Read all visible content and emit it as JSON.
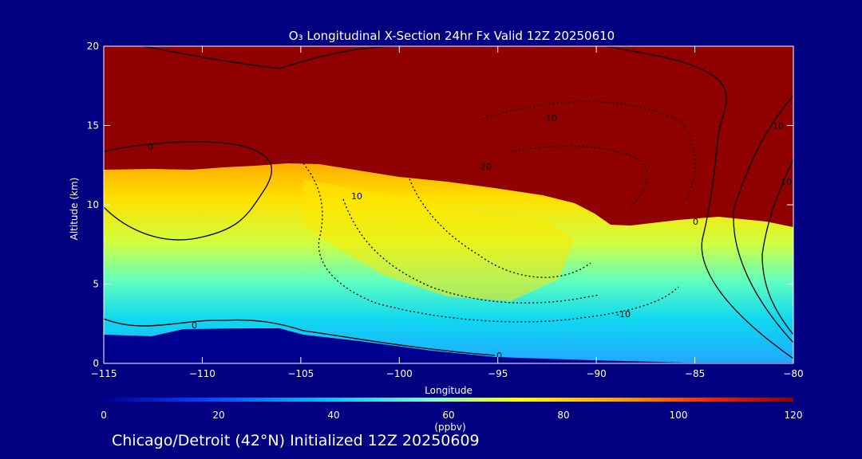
{
  "chart_data": {
    "type": "heatmap",
    "title": "O₃ Longitudinal X-Section 24hr  Fx Valid 12Z 20250610",
    "xlabel": "Longitude",
    "ylabel": "Altitude (km)",
    "xlim": [
      -115,
      -80
    ],
    "ylim": [
      0,
      20
    ],
    "x_ticks": [
      -115,
      -110,
      -105,
      -100,
      -95,
      -90,
      -85,
      -80
    ],
    "x_tick_labels": [
      "−115",
      "−110",
      "−105",
      "−100",
      "−95",
      "−90",
      "−85",
      "−80"
    ],
    "y_ticks": [
      0,
      5,
      10,
      15,
      20
    ],
    "y_tick_labels": [
      "0",
      "5",
      "10",
      "15",
      "20"
    ],
    "colorbar": {
      "label": "(ppbv)",
      "min": 0,
      "max": 120,
      "ticks": [
        0,
        20,
        40,
        60,
        80,
        100,
        120
      ],
      "colors": [
        "#000090",
        "#0040ff",
        "#00c8ff",
        "#80ffd0",
        "#ffff00",
        "#ffa000",
        "#ff2000",
        "#900000"
      ]
    },
    "field_description": "Ozone mixing ratio (ppbv); low (<20) near surface, 20-60 in lower troposphere, yellow 60-80 mid troposphere, >120 above ~11-13 km (tropopause dips to ~8 km near -91 to -87)",
    "tropopause_km": [
      [
        -115,
        12.5
      ],
      [
        -110,
        12.3
      ],
      [
        -105,
        12.6
      ],
      [
        -100,
        11.8
      ],
      [
        -95,
        11.2
      ],
      [
        -92,
        10.5
      ],
      [
        -90,
        9.0
      ],
      [
        -87,
        8.8
      ],
      [
        -85,
        9.0
      ],
      [
        -80,
        8.8
      ]
    ],
    "surface_terrain_km": [
      [
        -115,
        1.7
      ],
      [
        -112,
        1.6
      ],
      [
        -110,
        2.1
      ],
      [
        -106,
        2.1
      ],
      [
        -104,
        1.6
      ],
      [
        -100,
        1.0
      ],
      [
        -95,
        0.5
      ],
      [
        -90,
        0.3
      ],
      [
        -85,
        0.2
      ],
      [
        -80,
        0.2
      ]
    ],
    "contour_labels": [
      "0",
      "0",
      "0",
      "10",
      "-10",
      "-20",
      "-10",
      "10",
      "0",
      "10"
    ]
  },
  "subtitle": "Chicago/Detroit (42°N) Initialized 12Z 20250609"
}
